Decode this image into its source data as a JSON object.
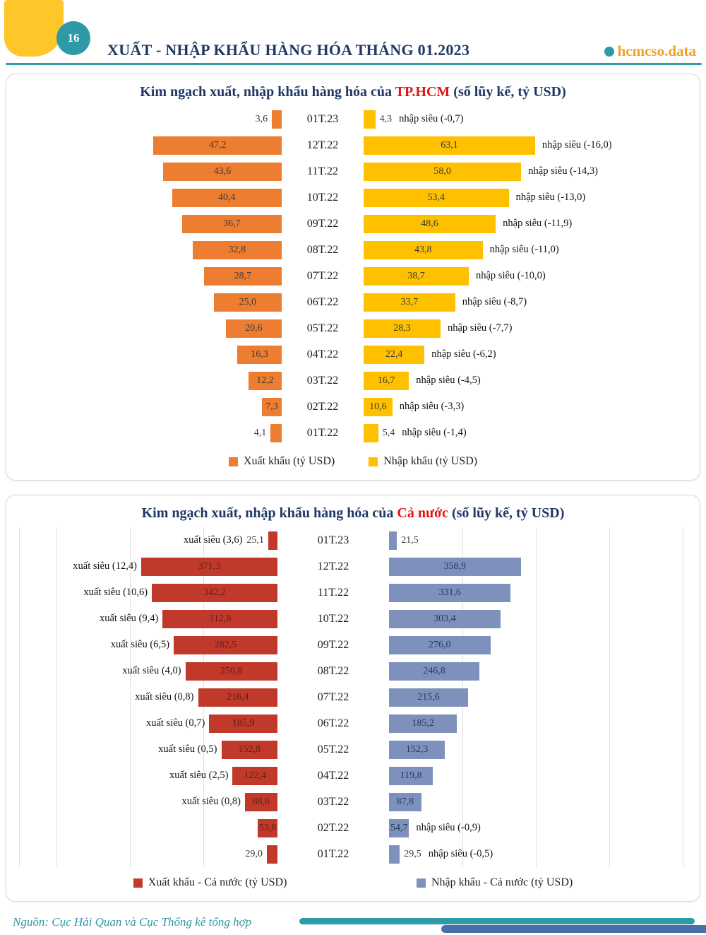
{
  "page": {
    "number": "16",
    "title": "XUẤT - NHẬP KHẨU HÀNG HÓA THÁNG 01.2023",
    "brand": "hcmcso.data",
    "source": "Nguồn: Cục Hải Quan và Cục Thống kê tổng hợp"
  },
  "colors": {
    "accent_teal": "#2E9AA8",
    "title_navy": "#1F3864",
    "highlight_red": "#E21414",
    "brand_orange": "#F2A024",
    "corner_yellow": "#FFC629",
    "export_hcm": "#ED7D31",
    "import_hcm": "#FFC000",
    "export_national": "#C0392B",
    "import_national": "#7E90BC",
    "footer_blue": "#4A6FA8"
  },
  "chart_data": [
    {
      "type": "bar",
      "layout": "tornado",
      "title": {
        "prefix": "Kim ngạch xuất, nhập khẩu hàng hóa của ",
        "highlight": "TP.HCM",
        "suffix": " (số lũy kế, tỷ USD)"
      },
      "categories": [
        "01T.23",
        "12T.22",
        "11T.22",
        "10T.22",
        "09T.22",
        "08T.22",
        "07T.22",
        "06T.22",
        "05T.22",
        "04T.22",
        "03T.22",
        "02T.22",
        "01T.22"
      ],
      "series": [
        {
          "name": "Xuất khẩu (tỷ USD)",
          "side": "left",
          "color": "#ED7D31",
          "values": [
            3.6,
            47.2,
            43.6,
            40.4,
            36.7,
            32.8,
            28.7,
            25.0,
            20.6,
            16.3,
            12.2,
            7.3,
            4.1
          ],
          "labels": [
            "3,6",
            "47,2",
            "43,6",
            "40,4",
            "36,7",
            "32,8",
            "28,7",
            "25,0",
            "20,6",
            "16,3",
            "12,2",
            "7,3",
            "4,1"
          ]
        },
        {
          "name": "Nhập khẩu (tỷ USD)",
          "side": "right",
          "color": "#FFC000",
          "values": [
            4.3,
            63.1,
            58.0,
            53.4,
            48.6,
            43.8,
            38.7,
            33.7,
            28.3,
            22.4,
            16.7,
            10.6,
            5.4
          ],
          "labels": [
            "4,3",
            "63,1",
            "58,0",
            "53,4",
            "48,6",
            "43,8",
            "38,7",
            "33,7",
            "28,3",
            "22,4",
            "16,7",
            "10,6",
            "5,4"
          ]
        }
      ],
      "annotations_left": [
        null,
        null,
        null,
        null,
        null,
        null,
        null,
        null,
        null,
        null,
        null,
        null,
        null
      ],
      "annotations_right": [
        "nhập siêu (-0,7)",
        "nhập siêu (-16,0)",
        "nhập siêu (-14,3)",
        "nhập siêu (-13,0)",
        "nhập siêu (-11,9)",
        "nhập siêu (-11,0)",
        "nhập siêu (-10,0)",
        "nhập siêu (-8,7)",
        "nhập siêu (-7,7)",
        "nhập siêu (-6,2)",
        "nhập siêu (-4,5)",
        "nhập siêu (-3,3)",
        "nhập siêu (-1,4)"
      ],
      "legend_position": "bottom",
      "grid": false
    },
    {
      "type": "bar",
      "layout": "tornado",
      "title": {
        "prefix": "Kim ngạch xuất, nhập khẩu hàng hóa của ",
        "highlight": "Cả nước",
        "suffix": " (số lũy kế, tỷ USD)"
      },
      "categories": [
        "01T.23",
        "12T.22",
        "11T.22",
        "10T.22",
        "09T.22",
        "08T.22",
        "07T.22",
        "06T.22",
        "05T.22",
        "04T.22",
        "03T.22",
        "02T.22",
        "01T.22"
      ],
      "series": [
        {
          "name": "Xuất khẩu - Cả nước (tỷ USD)",
          "side": "left",
          "color": "#C0392B",
          "values": [
            25.1,
            371.3,
            342.2,
            312.8,
            282.5,
            250.8,
            216.4,
            185.9,
            152.8,
            122.4,
            88.6,
            53.8,
            29.0
          ],
          "labels": [
            "25,1",
            "371,3",
            "342,2",
            "312,8",
            "282,5",
            "250,8",
            "216,4",
            "185,9",
            "152,8",
            "122,4",
            "88,6",
            "53,8",
            "29,0"
          ]
        },
        {
          "name": "Nhập khẩu - Cả nước (tỷ USD)",
          "side": "right",
          "color": "#7E90BC",
          "values": [
            21.5,
            358.9,
            331.6,
            303.4,
            276.0,
            246.8,
            215.6,
            185.2,
            152.3,
            119.8,
            87.8,
            54.7,
            29.5
          ],
          "labels": [
            "21,5",
            "358,9",
            "331,6",
            "303,4",
            "276,0",
            "246,8",
            "215,6",
            "185,2",
            "152,3",
            "119,8",
            "87,8",
            "54,7",
            "29,5"
          ]
        }
      ],
      "annotations_left": [
        "xuất siêu (3,6)",
        "xuất siêu (12,4)",
        "xuất siêu (10,6)",
        "xuất siêu (9,4)",
        "xuất siêu (6,5)",
        "xuất siêu (4,0)",
        "xuất siêu (0,8)",
        "xuất siêu (0,7)",
        "xuất siêu (0,5)",
        "xuất siêu (2,5)",
        "xuất siêu (0,8)",
        null,
        null
      ],
      "annotations_right": [
        null,
        null,
        null,
        null,
        null,
        null,
        null,
        null,
        null,
        null,
        null,
        "nhập siêu (-0,9)",
        "nhập siêu (-0,5)"
      ],
      "legend_position": "bottom",
      "grid": true
    }
  ]
}
